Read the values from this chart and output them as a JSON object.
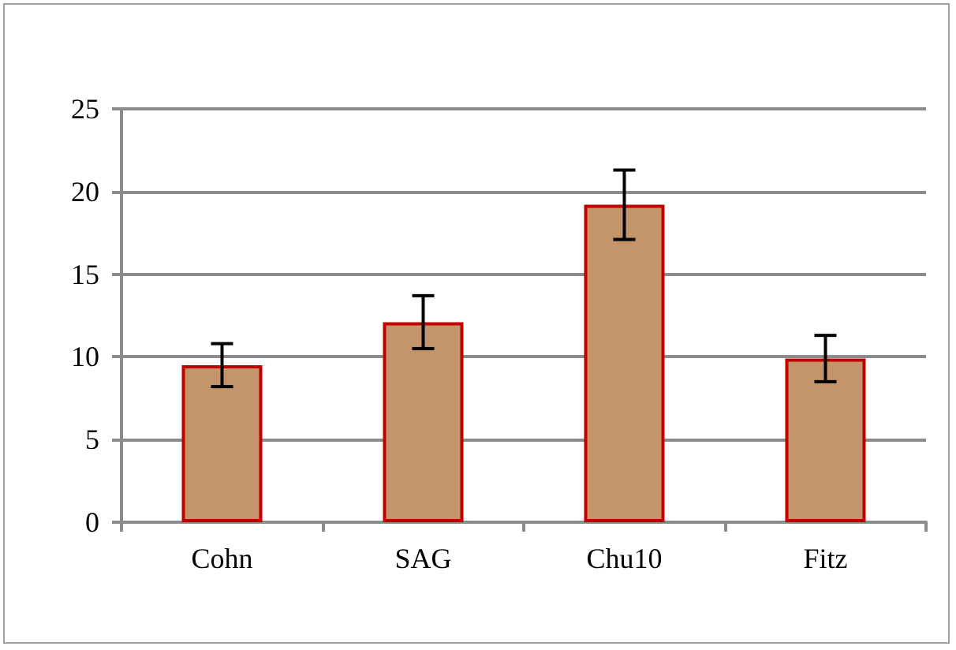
{
  "chart_data": {
    "type": "bar",
    "categories": [
      "Cohn",
      "SAG",
      "Chu10",
      "Fitz"
    ],
    "series": [
      {
        "color": "#c4956a",
        "values": [
          9.5,
          12.1,
          19.2,
          9.9
        ],
        "errors": [
          1.3,
          1.6,
          2.1,
          1.4
        ]
      }
    ],
    "ylim": [
      0,
      25
    ],
    "yticks": [
      0,
      5,
      10,
      15,
      20,
      25
    ],
    "grid": "y"
  }
}
